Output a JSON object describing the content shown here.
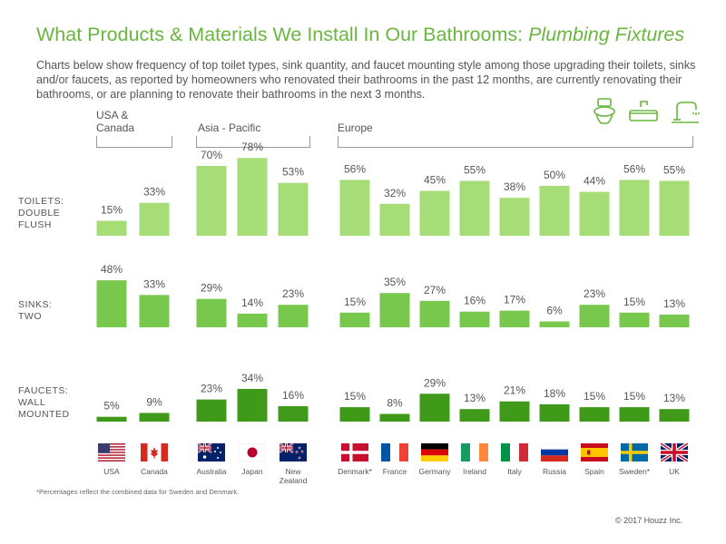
{
  "header": {
    "title_main": "What Products & Materials We Install In Our Bathrooms: ",
    "title_sub": "Plumbing Fixtures",
    "description": "Charts below show frequency of top toilet types, sink quantity, and faucet mounting style among those upgrading their toilets, sinks and/or faucets, as reported by homeowners who renovated their bathrooms in the past 12 months, are currently renovating their bathrooms, or are planning to renovate their bathrooms in the next 3 months."
  },
  "regions": {
    "usa_canada": "USA & Canada",
    "asia_pacific": "Asia - Pacific",
    "europe": "Europe"
  },
  "icons": [
    "toilet-icon",
    "sink-icon",
    "faucet-icon"
  ],
  "colors": {
    "toilets": "#a6dd77",
    "sinks": "#79c84e",
    "faucets": "#3f9a19",
    "accent": "#6ab63f"
  },
  "chart_data": {
    "type": "bar",
    "categories": [
      "USA",
      "Canada",
      "Australia",
      "Japan",
      "New Zealand",
      "Denmark*",
      "France",
      "Germany",
      "Ireland",
      "Italy",
      "Russia",
      "Spain",
      "Sweden*",
      "UK"
    ],
    "series": [
      {
        "name": "TOILETS: DOUBLE FLUSH",
        "values": [
          15,
          33,
          70,
          78,
          53,
          56,
          32,
          45,
          55,
          38,
          50,
          44,
          56,
          55
        ]
      },
      {
        "name": "SINKS: TWO",
        "values": [
          48,
          33,
          29,
          14,
          23,
          15,
          35,
          27,
          16,
          17,
          6,
          23,
          15,
          13
        ]
      },
      {
        "name": "FAUCETS: WALL MOUNTED",
        "values": [
          5,
          9,
          23,
          34,
          16,
          15,
          8,
          29,
          13,
          21,
          18,
          15,
          15,
          13
        ]
      }
    ],
    "value_suffix": "%"
  },
  "row_labels": [
    "TOILETS: DOUBLE FLUSH",
    "SINKS: TWO",
    "FAUCETS: WALL MOUNTED"
  ],
  "countries": [
    "USA",
    "Canada",
    "Australia",
    "Japan",
    "New Zealand",
    "Denmark*",
    "France",
    "Germany",
    "Ireland",
    "Italy",
    "Russia",
    "Spain",
    "Sweden*",
    "UK"
  ],
  "flags": [
    "us-flag-icon",
    "canada-flag-icon",
    "australia-flag-icon",
    "japan-flag-icon",
    "new-zealand-flag-icon",
    "denmark-flag-icon",
    "france-flag-icon",
    "germany-flag-icon",
    "ireland-flag-icon",
    "italy-flag-icon",
    "russia-flag-icon",
    "spain-flag-icon",
    "sweden-flag-icon",
    "uk-flag-icon"
  ],
  "footnote": "*Percentages reflect the combined data for Sweden and Denmark.",
  "copyright": "© 2017 Houzz Inc."
}
